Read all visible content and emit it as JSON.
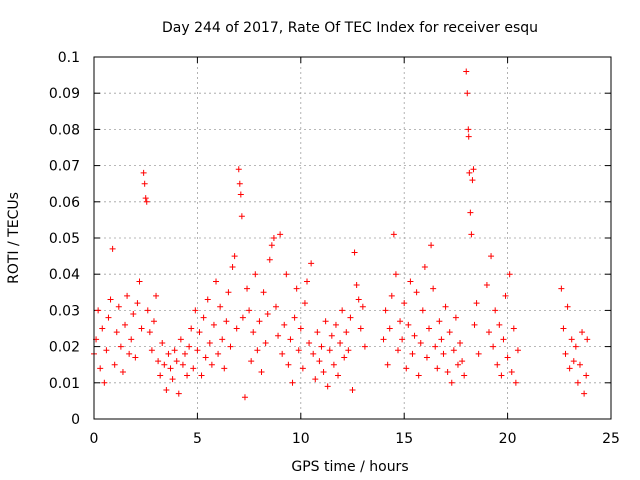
{
  "chart_data": {
    "type": "scatter",
    "title": "Day 244 of 2017, Rate Of TEC Index for receiver esqu",
    "xlabel": "GPS time / hours",
    "ylabel": "ROTI / TECUs",
    "xlim": [
      0,
      25
    ],
    "ylim": [
      0,
      0.1
    ],
    "xticks": [
      "0",
      "5",
      "10",
      "15",
      "20",
      "25"
    ],
    "yticks": [
      "0",
      "0.01",
      "0.02",
      "0.03",
      "0.04",
      "0.05",
      "0.06",
      "0.07",
      "0.08",
      "0.09",
      "0.1"
    ],
    "grid": true,
    "marker": "+",
    "color": "#ff0000",
    "series": [
      {
        "points": [
          [
            0.0,
            0.018
          ],
          [
            0.1,
            0.022
          ],
          [
            0.2,
            0.03
          ],
          [
            0.3,
            0.014
          ],
          [
            0.4,
            0.025
          ],
          [
            0.5,
            0.01
          ],
          [
            0.6,
            0.019
          ],
          [
            0.7,
            0.028
          ],
          [
            0.8,
            0.033
          ],
          [
            0.9,
            0.047
          ],
          [
            1.0,
            0.015
          ],
          [
            1.1,
            0.024
          ],
          [
            1.2,
            0.031
          ],
          [
            1.3,
            0.02
          ],
          [
            1.4,
            0.013
          ],
          [
            1.5,
            0.026
          ],
          [
            1.6,
            0.034
          ],
          [
            1.7,
            0.018
          ],
          [
            1.8,
            0.022
          ],
          [
            1.9,
            0.029
          ],
          [
            2.0,
            0.017
          ],
          [
            2.1,
            0.032
          ],
          [
            2.2,
            0.038
          ],
          [
            2.3,
            0.025
          ],
          [
            2.4,
            0.068
          ],
          [
            2.45,
            0.065
          ],
          [
            2.5,
            0.061
          ],
          [
            2.55,
            0.06
          ],
          [
            2.6,
            0.03
          ],
          [
            2.7,
            0.024
          ],
          [
            2.8,
            0.019
          ],
          [
            2.9,
            0.027
          ],
          [
            3.0,
            0.034
          ],
          [
            3.1,
            0.016
          ],
          [
            3.2,
            0.012
          ],
          [
            3.3,
            0.021
          ],
          [
            3.4,
            0.015
          ],
          [
            3.5,
            0.008
          ],
          [
            3.6,
            0.018
          ],
          [
            3.7,
            0.014
          ],
          [
            3.8,
            0.011
          ],
          [
            3.9,
            0.019
          ],
          [
            4.0,
            0.016
          ],
          [
            4.1,
            0.007
          ],
          [
            4.2,
            0.022
          ],
          [
            4.3,
            0.015
          ],
          [
            4.4,
            0.018
          ],
          [
            4.5,
            0.012
          ],
          [
            4.6,
            0.02
          ],
          [
            4.7,
            0.025
          ],
          [
            4.8,
            0.014
          ],
          [
            4.9,
            0.03
          ],
          [
            5.0,
            0.019
          ],
          [
            5.1,
            0.024
          ],
          [
            5.2,
            0.012
          ],
          [
            5.3,
            0.028
          ],
          [
            5.4,
            0.017
          ],
          [
            5.5,
            0.033
          ],
          [
            5.6,
            0.021
          ],
          [
            5.7,
            0.015
          ],
          [
            5.8,
            0.026
          ],
          [
            5.9,
            0.038
          ],
          [
            6.0,
            0.018
          ],
          [
            6.1,
            0.031
          ],
          [
            6.2,
            0.022
          ],
          [
            6.3,
            0.014
          ],
          [
            6.4,
            0.027
          ],
          [
            6.5,
            0.035
          ],
          [
            6.6,
            0.02
          ],
          [
            6.7,
            0.042
          ],
          [
            6.8,
            0.045
          ],
          [
            6.9,
            0.025
          ],
          [
            7.0,
            0.069
          ],
          [
            7.05,
            0.065
          ],
          [
            7.1,
            0.062
          ],
          [
            7.15,
            0.056
          ],
          [
            7.2,
            0.028
          ],
          [
            7.3,
            0.006
          ],
          [
            7.4,
            0.036
          ],
          [
            7.5,
            0.03
          ],
          [
            7.6,
            0.016
          ],
          [
            7.7,
            0.024
          ],
          [
            7.8,
            0.04
          ],
          [
            7.9,
            0.019
          ],
          [
            8.0,
            0.027
          ],
          [
            8.1,
            0.013
          ],
          [
            8.2,
            0.035
          ],
          [
            8.3,
            0.021
          ],
          [
            8.4,
            0.029
          ],
          [
            8.5,
            0.044
          ],
          [
            8.6,
            0.048
          ],
          [
            8.7,
            0.05
          ],
          [
            8.8,
            0.031
          ],
          [
            8.9,
            0.023
          ],
          [
            9.0,
            0.051
          ],
          [
            9.1,
            0.018
          ],
          [
            9.2,
            0.026
          ],
          [
            9.3,
            0.04
          ],
          [
            9.4,
            0.015
          ],
          [
            9.5,
            0.022
          ],
          [
            9.6,
            0.01
          ],
          [
            9.7,
            0.028
          ],
          [
            9.8,
            0.036
          ],
          [
            9.9,
            0.019
          ],
          [
            10.0,
            0.025
          ],
          [
            10.1,
            0.014
          ],
          [
            10.2,
            0.032
          ],
          [
            10.3,
            0.038
          ],
          [
            10.4,
            0.021
          ],
          [
            10.5,
            0.043
          ],
          [
            10.6,
            0.018
          ],
          [
            10.7,
            0.011
          ],
          [
            10.8,
            0.024
          ],
          [
            10.9,
            0.016
          ],
          [
            11.0,
            0.02
          ],
          [
            11.1,
            0.013
          ],
          [
            11.2,
            0.027
          ],
          [
            11.3,
            0.009
          ],
          [
            11.4,
            0.019
          ],
          [
            11.5,
            0.023
          ],
          [
            11.6,
            0.015
          ],
          [
            11.7,
            0.026
          ],
          [
            11.8,
            0.012
          ],
          [
            11.9,
            0.021
          ],
          [
            12.0,
            0.03
          ],
          [
            12.1,
            0.017
          ],
          [
            12.2,
            0.024
          ],
          [
            12.3,
            0.019
          ],
          [
            12.4,
            0.028
          ],
          [
            12.5,
            0.008
          ],
          [
            12.6,
            0.046
          ],
          [
            12.7,
            0.037
          ],
          [
            12.8,
            0.033
          ],
          [
            12.9,
            0.025
          ],
          [
            13.0,
            0.031
          ],
          [
            13.1,
            0.02
          ],
          [
            14.0,
            0.022
          ],
          [
            14.1,
            0.03
          ],
          [
            14.2,
            0.015
          ],
          [
            14.3,
            0.025
          ],
          [
            14.4,
            0.034
          ],
          [
            14.5,
            0.051
          ],
          [
            14.6,
            0.04
          ],
          [
            14.7,
            0.019
          ],
          [
            14.8,
            0.027
          ],
          [
            14.9,
            0.022
          ],
          [
            15.0,
            0.032
          ],
          [
            15.1,
            0.014
          ],
          [
            15.2,
            0.026
          ],
          [
            15.3,
            0.038
          ],
          [
            15.4,
            0.018
          ],
          [
            15.5,
            0.023
          ],
          [
            15.6,
            0.035
          ],
          [
            15.7,
            0.012
          ],
          [
            15.8,
            0.021
          ],
          [
            15.9,
            0.03
          ],
          [
            16.0,
            0.042
          ],
          [
            16.1,
            0.017
          ],
          [
            16.2,
            0.025
          ],
          [
            16.3,
            0.048
          ],
          [
            16.4,
            0.036
          ],
          [
            16.5,
            0.02
          ],
          [
            16.6,
            0.014
          ],
          [
            16.7,
            0.027
          ],
          [
            16.8,
            0.022
          ],
          [
            16.9,
            0.018
          ],
          [
            17.0,
            0.031
          ],
          [
            17.1,
            0.013
          ],
          [
            17.2,
            0.024
          ],
          [
            17.3,
            0.01
          ],
          [
            17.4,
            0.019
          ],
          [
            17.5,
            0.028
          ],
          [
            17.6,
            0.015
          ],
          [
            17.7,
            0.021
          ],
          [
            17.8,
            0.016
          ],
          [
            17.9,
            0.012
          ],
          [
            18.0,
            0.096
          ],
          [
            18.05,
            0.09
          ],
          [
            18.1,
            0.08
          ],
          [
            18.12,
            0.078
          ],
          [
            18.15,
            0.068
          ],
          [
            18.2,
            0.057
          ],
          [
            18.25,
            0.051
          ],
          [
            18.3,
            0.066
          ],
          [
            18.35,
            0.069
          ],
          [
            18.4,
            0.026
          ],
          [
            18.5,
            0.032
          ],
          [
            18.6,
            0.018
          ],
          [
            19.0,
            0.037
          ],
          [
            19.1,
            0.024
          ],
          [
            19.2,
            0.045
          ],
          [
            19.3,
            0.02
          ],
          [
            19.4,
            0.03
          ],
          [
            19.5,
            0.015
          ],
          [
            19.6,
            0.026
          ],
          [
            19.7,
            0.012
          ],
          [
            19.8,
            0.022
          ],
          [
            19.9,
            0.034
          ],
          [
            20.0,
            0.017
          ],
          [
            20.1,
            0.04
          ],
          [
            20.2,
            0.013
          ],
          [
            20.3,
            0.025
          ],
          [
            20.4,
            0.01
          ],
          [
            20.5,
            0.019
          ],
          [
            22.6,
            0.036
          ],
          [
            22.7,
            0.025
          ],
          [
            22.8,
            0.018
          ],
          [
            22.9,
            0.031
          ],
          [
            23.0,
            0.014
          ],
          [
            23.1,
            0.022
          ],
          [
            23.2,
            0.016
          ],
          [
            23.3,
            0.02
          ],
          [
            23.4,
            0.01
          ],
          [
            23.5,
            0.015
          ],
          [
            23.6,
            0.024
          ],
          [
            23.7,
            0.007
          ],
          [
            23.8,
            0.012
          ],
          [
            23.85,
            0.022
          ]
        ]
      }
    ]
  }
}
